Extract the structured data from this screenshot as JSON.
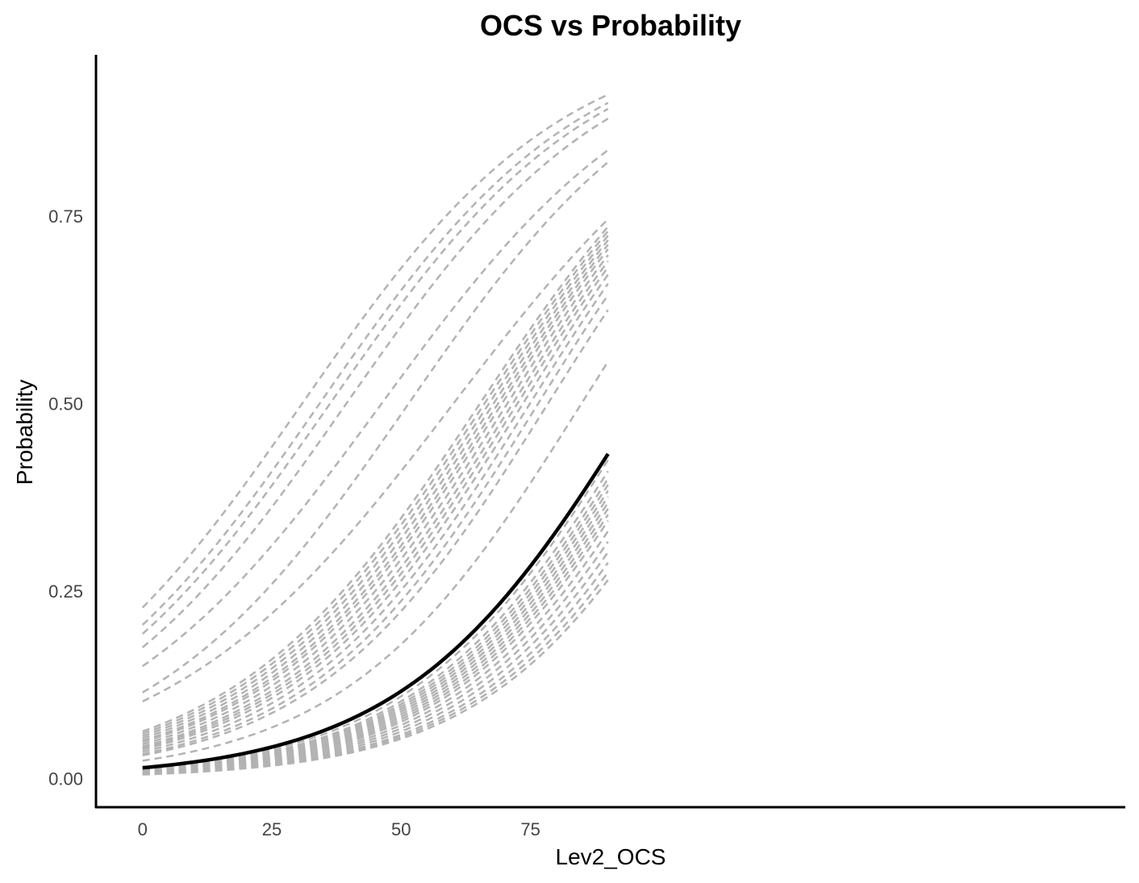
{
  "chart_data": {
    "type": "line",
    "title": "OCS vs Probability",
    "xlabel": "Lev2_OCS",
    "ylabel": "Probability",
    "xlim": [
      -9,
      190
    ],
    "ylim": [
      -0.038,
      0.965
    ],
    "x_ticks": [
      0,
      25,
      50,
      75
    ],
    "x_tick_labels": [
      "0",
      "25",
      "50",
      "75"
    ],
    "y_ticks": [
      0,
      0.25,
      0.5,
      0.75
    ],
    "y_tick_labels": [
      "0.00",
      "0.25",
      "0.50",
      "0.75"
    ],
    "x_range": [
      0,
      90
    ],
    "grid": false,
    "legend": "none",
    "colors": {
      "individual": "#b3b3b3",
      "average": "#000000"
    },
    "series_style": {
      "individual": "dashed",
      "average": "solid"
    },
    "series_end_x": 90,
    "series": [
      {
        "kind": "individual",
        "x": [
          0,
          90
        ],
        "y": [
          0.228,
          0.912
        ]
      },
      {
        "kind": "individual",
        "x": [
          0,
          90
        ],
        "y": [
          0.205,
          0.901
        ]
      },
      {
        "kind": "individual",
        "x": [
          0,
          90
        ],
        "y": [
          0.193,
          0.893
        ]
      },
      {
        "kind": "individual",
        "x": [
          0,
          90
        ],
        "y": [
          0.175,
          0.88
        ]
      },
      {
        "kind": "individual",
        "x": [
          0,
          90
        ],
        "y": [
          0.15,
          0.838
        ]
      },
      {
        "kind": "individual",
        "x": [
          0,
          90
        ],
        "y": [
          0.115,
          0.822
        ]
      },
      {
        "kind": "individual",
        "x": [
          0,
          90
        ],
        "y": [
          0.103,
          0.746
        ]
      },
      {
        "kind": "individual",
        "x": [
          0,
          90
        ],
        "y": [
          0.063,
          0.736
        ]
      },
      {
        "kind": "individual",
        "x": [
          0,
          90
        ],
        "y": [
          0.06,
          0.73
        ]
      },
      {
        "kind": "individual",
        "x": [
          0,
          90
        ],
        "y": [
          0.057,
          0.724
        ]
      },
      {
        "kind": "individual",
        "x": [
          0,
          90
        ],
        "y": [
          0.054,
          0.718
        ]
      },
      {
        "kind": "individual",
        "x": [
          0,
          90
        ],
        "y": [
          0.051,
          0.712
        ]
      },
      {
        "kind": "individual",
        "x": [
          0,
          90
        ],
        "y": [
          0.049,
          0.706
        ]
      },
      {
        "kind": "individual",
        "x": [
          0,
          90
        ],
        "y": [
          0.046,
          0.698
        ]
      },
      {
        "kind": "individual",
        "x": [
          0,
          90
        ],
        "y": [
          0.043,
          0.69
        ]
      },
      {
        "kind": "individual",
        "x": [
          0,
          90
        ],
        "y": [
          0.041,
          0.682
        ]
      },
      {
        "kind": "individual",
        "x": [
          0,
          90
        ],
        "y": [
          0.039,
          0.672
        ]
      },
      {
        "kind": "individual",
        "x": [
          0,
          90
        ],
        "y": [
          0.036,
          0.66
        ]
      },
      {
        "kind": "individual",
        "x": [
          0,
          90
        ],
        "y": [
          0.033,
          0.645
        ]
      },
      {
        "kind": "individual",
        "x": [
          0,
          90
        ],
        "y": [
          0.031,
          0.625
        ]
      },
      {
        "kind": "individual",
        "x": [
          0,
          90
        ],
        "y": [
          0.024,
          0.556
        ]
      },
      {
        "kind": "individual",
        "x": [
          0,
          90
        ],
        "y": [
          0.013,
          0.425
        ]
      },
      {
        "kind": "individual",
        "x": [
          0,
          90
        ],
        "y": [
          0.012,
          0.41
        ]
      },
      {
        "kind": "individual",
        "x": [
          0,
          90
        ],
        "y": [
          0.0115,
          0.4
        ]
      },
      {
        "kind": "individual",
        "x": [
          0,
          90
        ],
        "y": [
          0.011,
          0.392
        ]
      },
      {
        "kind": "individual",
        "x": [
          0,
          90
        ],
        "y": [
          0.0105,
          0.384
        ]
      },
      {
        "kind": "individual",
        "x": [
          0,
          90
        ],
        "y": [
          0.01,
          0.376
        ]
      },
      {
        "kind": "individual",
        "x": [
          0,
          90
        ],
        "y": [
          0.0095,
          0.368
        ]
      },
      {
        "kind": "individual",
        "x": [
          0,
          90
        ],
        "y": [
          0.009,
          0.36
        ]
      },
      {
        "kind": "individual",
        "x": [
          0,
          90
        ],
        "y": [
          0.0085,
          0.352
        ]
      },
      {
        "kind": "individual",
        "x": [
          0,
          90
        ],
        "y": [
          0.008,
          0.344
        ]
      },
      {
        "kind": "individual",
        "x": [
          0,
          90
        ],
        "y": [
          0.0075,
          0.33
        ]
      },
      {
        "kind": "individual",
        "x": [
          0,
          90
        ],
        "y": [
          0.007,
          0.316
        ]
      },
      {
        "kind": "individual",
        "x": [
          0,
          90
        ],
        "y": [
          0.0065,
          0.302
        ]
      },
      {
        "kind": "individual",
        "x": [
          0,
          90
        ],
        "y": [
          0.006,
          0.288
        ]
      },
      {
        "kind": "individual",
        "x": [
          0,
          90
        ],
        "y": [
          0.0058,
          0.275
        ]
      },
      {
        "kind": "individual",
        "x": [
          0,
          90
        ],
        "y": [
          0.0055,
          0.265
        ]
      },
      {
        "kind": "average",
        "x": [
          0,
          90
        ],
        "y": [
          0.0145,
          0.433
        ]
      }
    ]
  }
}
